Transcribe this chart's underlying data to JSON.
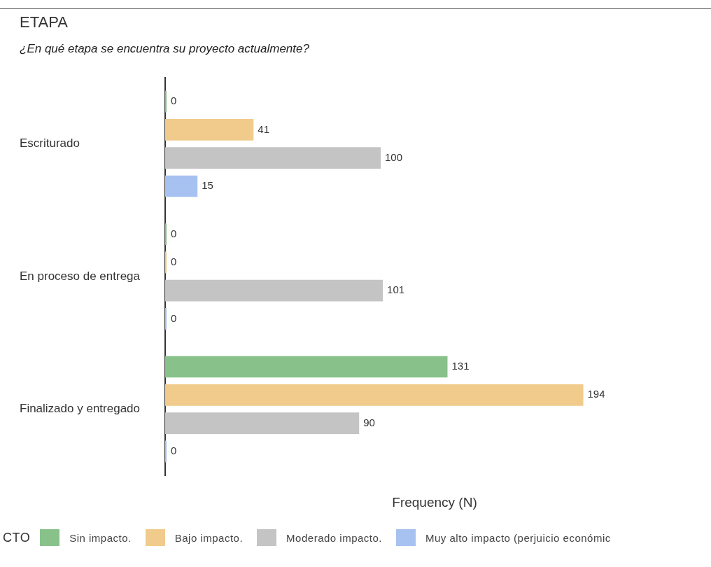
{
  "chart_data": {
    "type": "bar",
    "orientation": "horizontal",
    "title": "ETAPA",
    "subtitle": "¿En qué etapa se encuentra su proyecto actualmente?",
    "xlabel": "Frequency (N)",
    "legend_title": "CTO",
    "legend": "bottom",
    "grid": false,
    "data_labels": true,
    "categories": [
      "Escriturado",
      "En proceso de entrega",
      "Finalizado y entregado"
    ],
    "series": [
      {
        "name": "Sin impacto.",
        "color": "#88c28a",
        "values": [
          0,
          0,
          131
        ]
      },
      {
        "name": "Bajo impacto.",
        "color": "#f0cb8c",
        "values": [
          41,
          0,
          194
        ]
      },
      {
        "name": "Moderado impacto.",
        "color": "#c4c4c4",
        "values": [
          100,
          101,
          90
        ]
      },
      {
        "name": "Muy alto impacto (perjuicio económic",
        "color": "#a7c2f0",
        "values": [
          15,
          0,
          0
        ]
      }
    ]
  }
}
